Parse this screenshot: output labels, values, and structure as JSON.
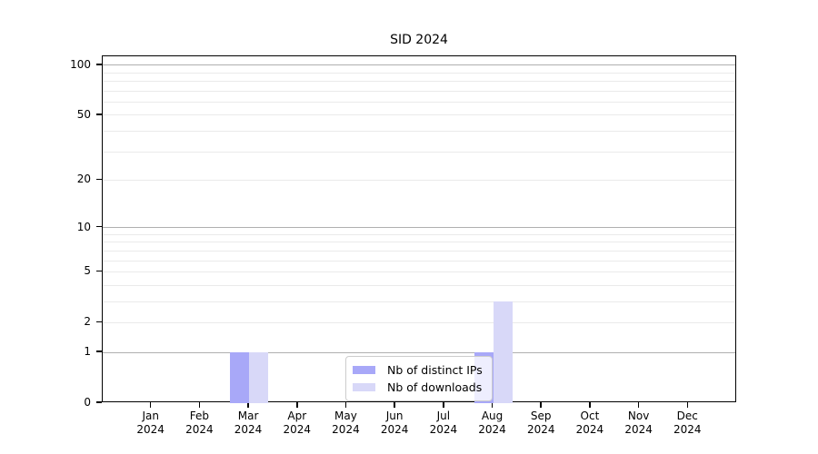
{
  "chart_data": {
    "type": "bar",
    "title": "SID 2024",
    "categories": [
      "Jan",
      "Feb",
      "Mar",
      "Apr",
      "May",
      "Jun",
      "Jul",
      "Aug",
      "Sep",
      "Oct",
      "Nov",
      "Dec"
    ],
    "year_label": "2024",
    "series": [
      {
        "name": "Nb of distinct IPs",
        "color": "#a8a8f8",
        "values": [
          0,
          0,
          1,
          0,
          0,
          0,
          0,
          1,
          0,
          0,
          0,
          0
        ]
      },
      {
        "name": "Nb of downloads",
        "color": "#d8d8f8",
        "values": [
          0,
          0,
          1,
          0,
          0,
          0,
          0,
          3,
          0,
          0,
          0,
          0
        ]
      }
    ],
    "xlabel": "",
    "ylabel": "",
    "yscale": "log1p",
    "ylim": [
      0,
      113
    ],
    "yticks": {
      "values": [
        0,
        1,
        2,
        5,
        10,
        20,
        50,
        100
      ],
      "labels": [
        "0",
        "1",
        "2",
        "5",
        "10",
        "20",
        "50",
        "100"
      ]
    },
    "grid": {
      "major_values": [
        1,
        10,
        100
      ],
      "minor_values": [
        2,
        3,
        4,
        5,
        6,
        7,
        8,
        9,
        20,
        30,
        40,
        50,
        60,
        70,
        80,
        90
      ],
      "major_color": "#b0b0b0",
      "minor_color": "#eaeaea"
    },
    "legend": {
      "position": "lower-center"
    },
    "colors": {
      "axis": "#000000",
      "background": "#ffffff",
      "text": "#000000"
    }
  }
}
